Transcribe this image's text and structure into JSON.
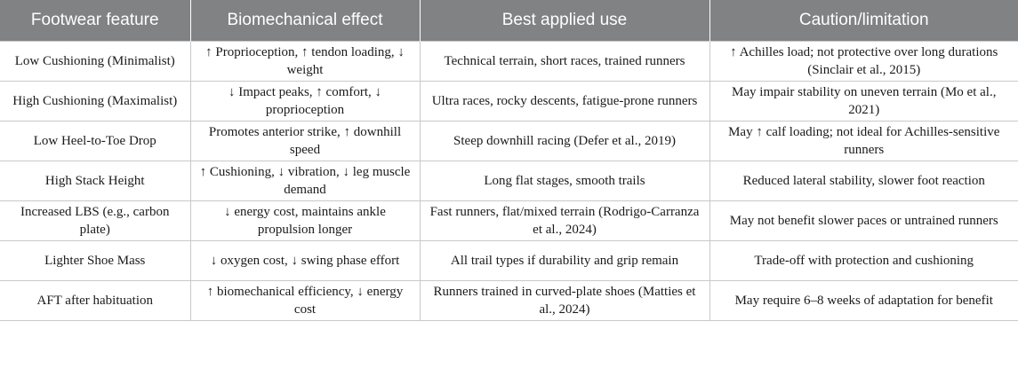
{
  "table": {
    "headers": [
      "Footwear feature",
      "Biomechanical effect",
      "Best applied use",
      "Caution/limitation"
    ],
    "rows": [
      [
        "Low Cushioning (Minimalist)",
        "↑ Proprioception, ↑ tendon loading, ↓ weight",
        "Technical terrain, short races, trained runners",
        "↑ Achilles load; not protective over long durations (Sinclair et al., 2015)"
      ],
      [
        "High Cushioning (Maximalist)",
        "↓ Impact peaks, ↑ comfort, ↓ proprioception",
        "Ultra races, rocky descents, fatigue-prone runners",
        "May impair stability on uneven terrain (Mo et al., 2021)"
      ],
      [
        "Low Heel-to-Toe Drop",
        "Promotes anterior strike, ↑ downhill speed",
        "Steep downhill racing (Defer et al., 2019)",
        "May ↑ calf loading; not ideal for Achilles-sensitive runners"
      ],
      [
        "High Stack Height",
        "↑ Cushioning, ↓ vibration, ↓ leg muscle demand",
        "Long flat stages, smooth trails",
        "Reduced lateral stability, slower foot reaction"
      ],
      [
        "Increased LBS (e.g., carbon plate)",
        "↓ energy cost, maintains ankle propulsion longer",
        "Fast runners, flat/mixed terrain (Rodrigo-Carranza et al., 2024)",
        "May not benefit slower paces or untrained runners"
      ],
      [
        "Lighter Shoe Mass",
        "↓ oxygen cost, ↓ swing phase effort",
        "All trail types if durability and grip remain",
        "Trade-off with protection and cushioning"
      ],
      [
        "AFT after habituation",
        "↑ biomechanical efficiency, ↓ energy cost",
        "Runners trained in curved-plate shoes (Matties et al., 2024)",
        "May require 6–8 weeks of adaptation for benefit"
      ]
    ]
  }
}
